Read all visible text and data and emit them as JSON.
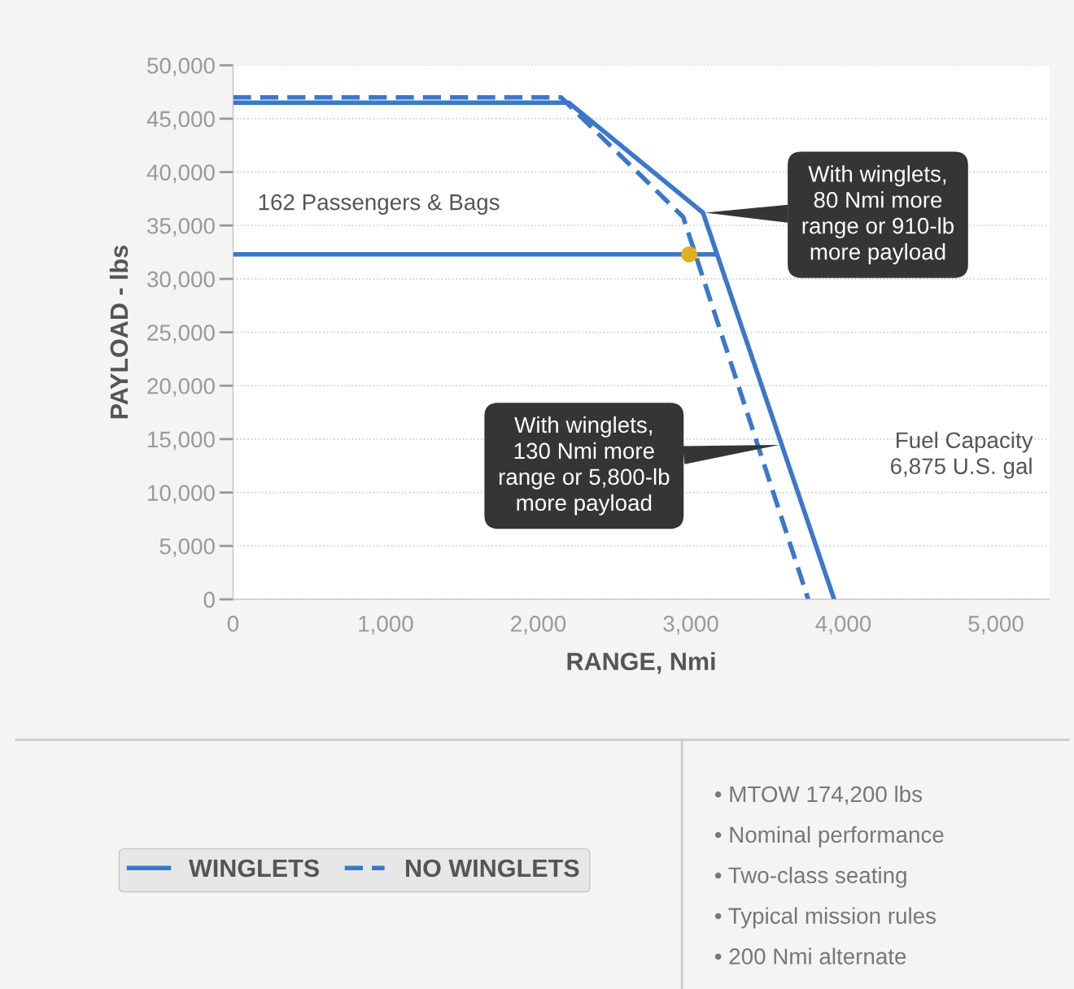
{
  "chart_data": {
    "type": "line",
    "xlabel": "RANGE, Nmi",
    "ylabel": "PAYLOAD - lbs",
    "xlim": [
      0,
      5350
    ],
    "xticks": [
      {
        "value": 0,
        "label": "0"
      },
      {
        "value": 1000,
        "label": "1,000"
      },
      {
        "value": 2000,
        "label": "2,000"
      },
      {
        "value": 3000,
        "label": "3,000"
      },
      {
        "value": 4000,
        "label": "4,000"
      },
      {
        "value": 5000,
        "label": "5,000"
      }
    ],
    "ylim": [
      0,
      50000
    ],
    "yticks": [
      {
        "value": 0,
        "label": "0"
      },
      {
        "value": 5000,
        "label": "5,000"
      },
      {
        "value": 10000,
        "label": "10,000"
      },
      {
        "value": 15000,
        "label": "15,000"
      },
      {
        "value": 20000,
        "label": "20,000"
      },
      {
        "value": 25000,
        "label": "25,000"
      },
      {
        "value": 30000,
        "label": "30,000"
      },
      {
        "value": 35000,
        "label": "35,000"
      },
      {
        "value": 40000,
        "label": "40,000"
      },
      {
        "value": 45000,
        "label": "45,000"
      },
      {
        "value": 50000,
        "label": "50,000"
      }
    ],
    "grid": "y",
    "legend": "bottom",
    "series": [
      {
        "name": "WINGLETS",
        "color": "#3a78c9",
        "line_style": "solid",
        "x": [
          0,
          2200,
          3080,
          3940
        ],
        "values": [
          46500,
          46500,
          36200,
          0
        ]
      },
      {
        "name": "NO WINGLETS",
        "color": "#3a78c9",
        "line_style": "dashed",
        "x": [
          0,
          2150,
          2950,
          3770
        ],
        "values": [
          47000,
          47000,
          35800,
          0
        ]
      },
      {
        "color": "#3a78c9",
        "line_style": "solid",
        "x": [
          0,
          3160
        ],
        "values": [
          32300,
          32300
        ]
      },
      {
        "type": "scatter",
        "color": "#e0b020",
        "marker": "circle",
        "x": [
          2990
        ],
        "values": [
          32300
        ]
      }
    ],
    "annotations": [
      {
        "text": "With winglets,\n80 Nmi more\nrange or 910-lb\nmore payload",
        "x": 3080,
        "y": 36200
      },
      {
        "text": "With winglets,\n130 Nmi more\nrange or 5,800-lb\nmore payload",
        "x": 3596,
        "y": 14480
      },
      "162 Passengers & Bags",
      "Fuel Capacity\n6,875 U.S. gal",
      "• MTOW 174,200 lbs",
      "• Nominal performance",
      "• Two-class seating",
      "• Typical mission rules",
      "• 200 Nmi alternate"
    ]
  }
}
